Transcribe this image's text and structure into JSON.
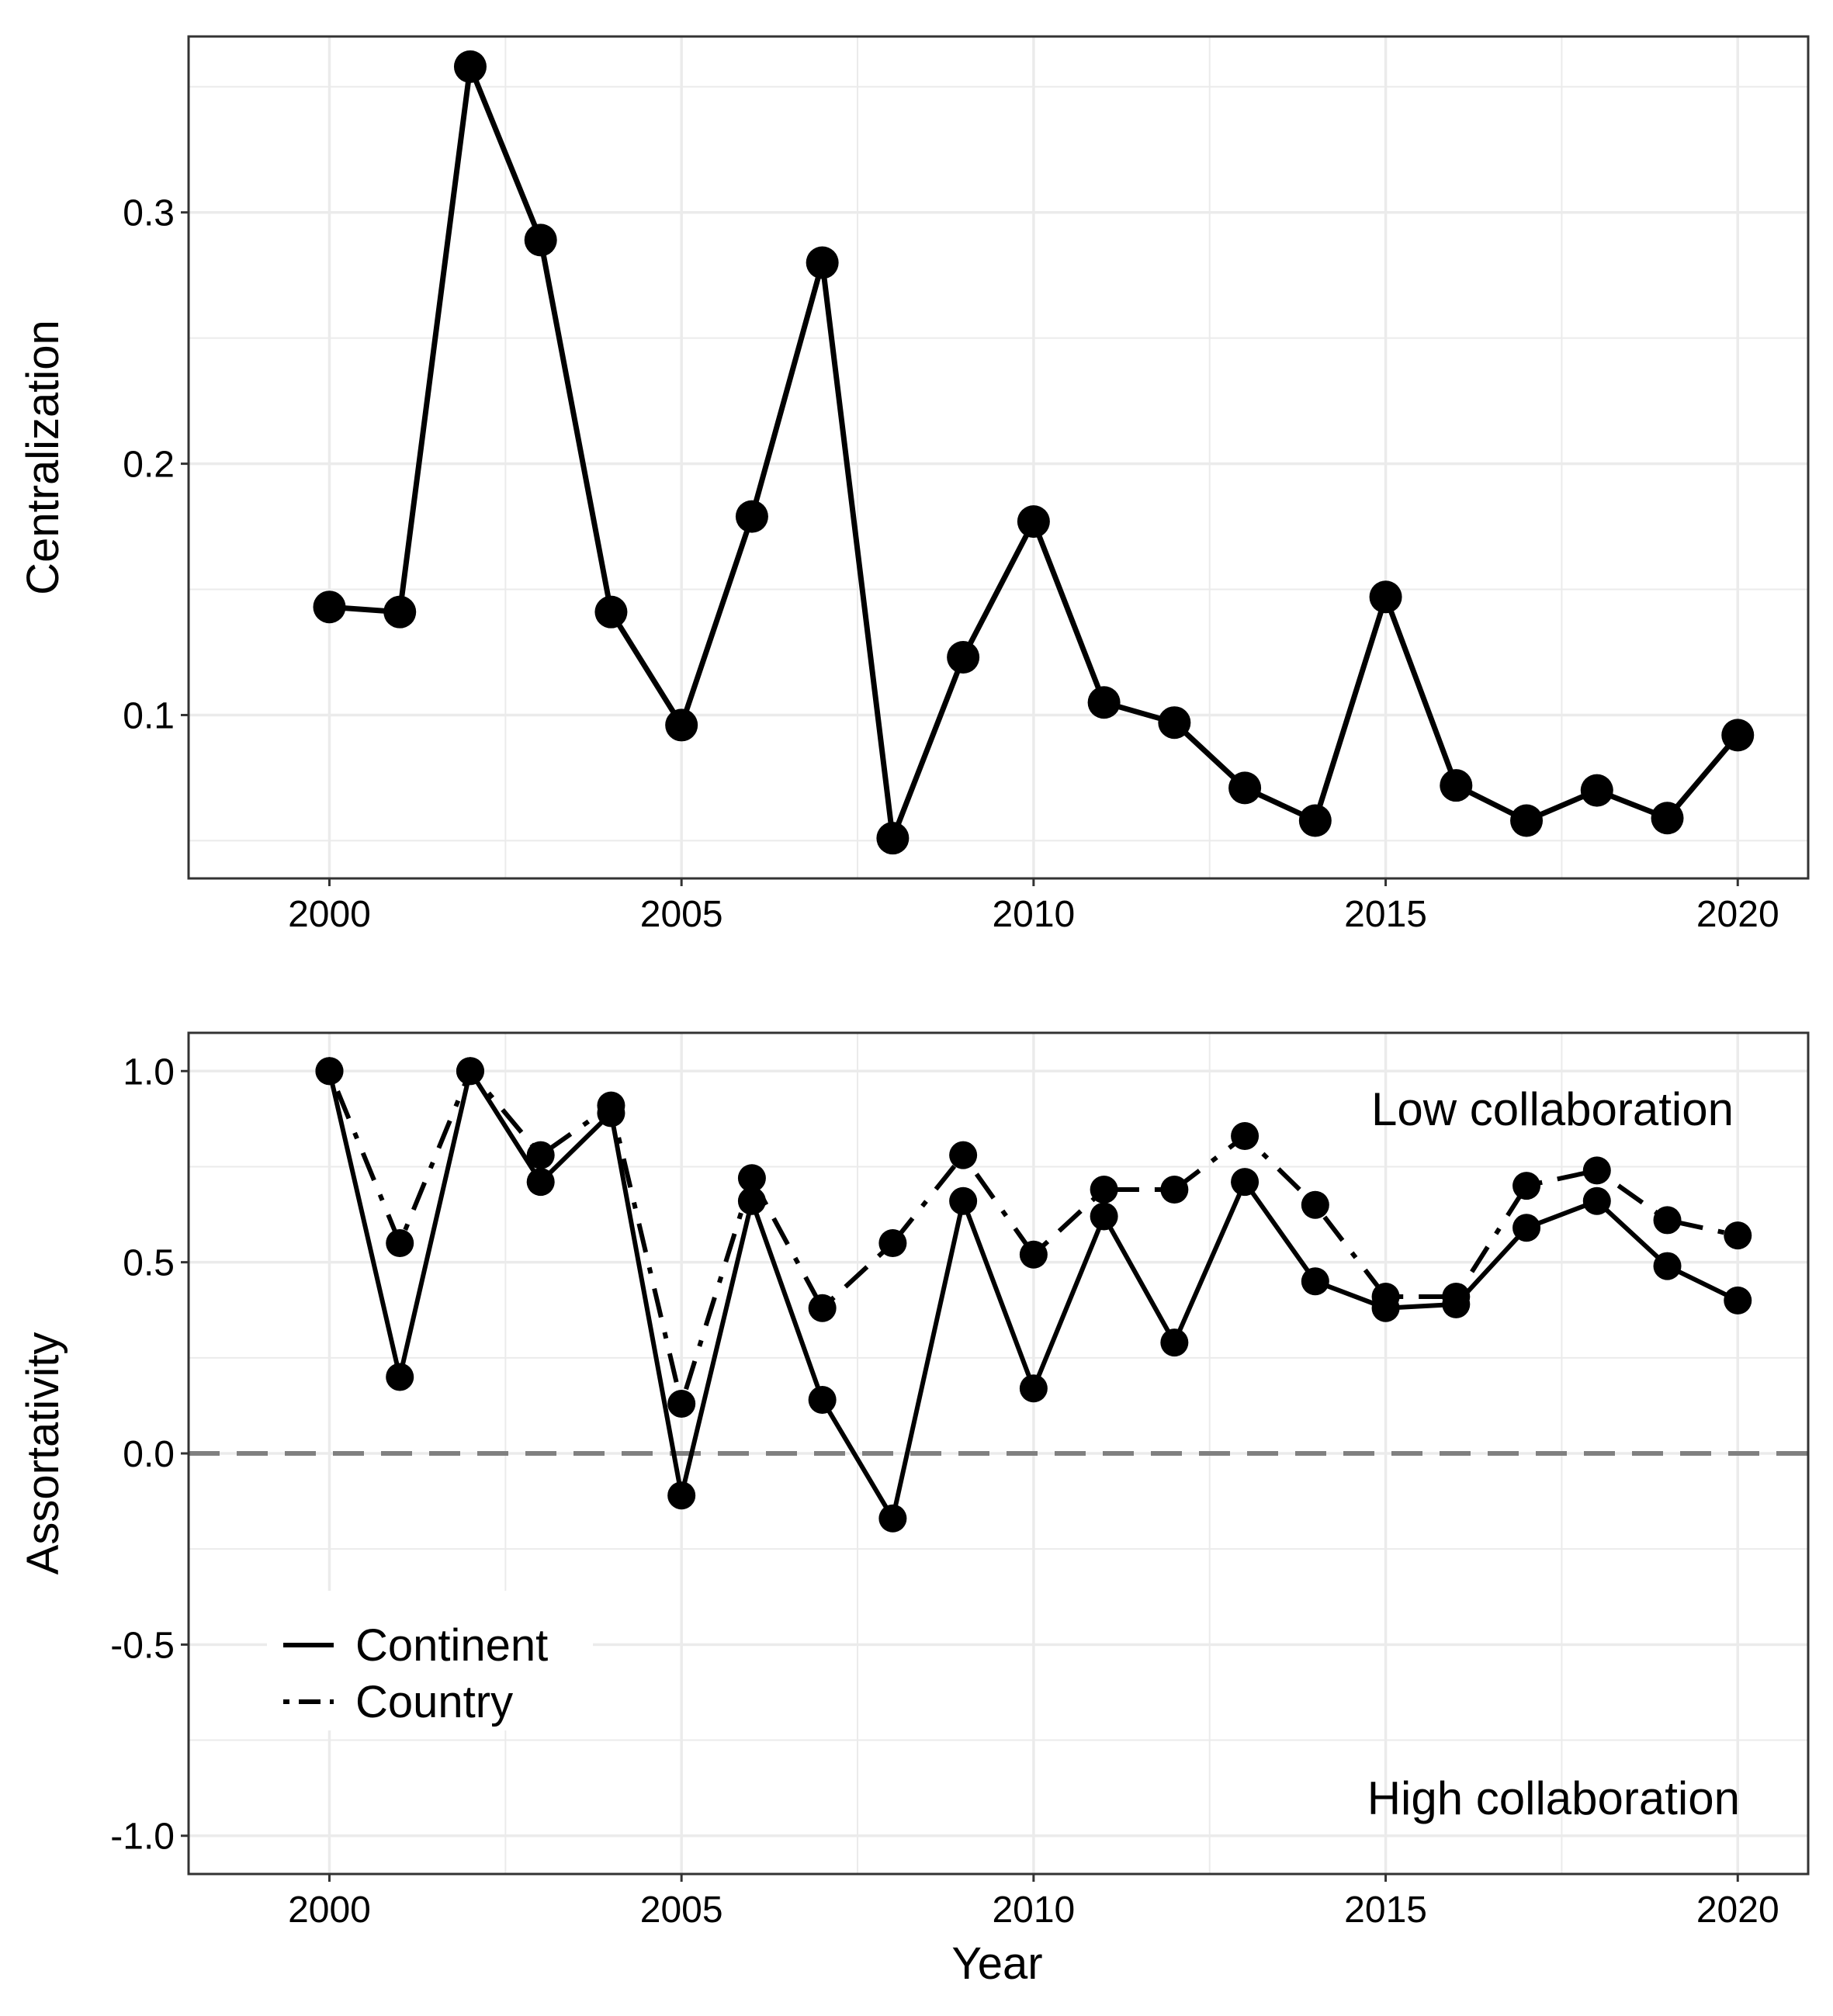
{
  "figure": {
    "xlabel": "Year",
    "colors": {
      "line": "#000000",
      "grid": "#ebebeb",
      "zero_line": "#808080"
    }
  },
  "chart_data": [
    {
      "type": "line",
      "title": "",
      "xlabel": "",
      "ylabel": "Centralization",
      "xlim": [
        1998,
        2021
      ],
      "ylim": [
        0.035,
        0.37
      ],
      "xticks": [
        2000,
        2005,
        2010,
        2015,
        2020
      ],
      "yticks": [
        0.1,
        0.2,
        0.3
      ],
      "ytick_labels": [
        "0.1",
        "0.2",
        "0.3"
      ],
      "grid": true,
      "legend": null,
      "x": [
        2000,
        2001,
        2002,
        2003,
        2004,
        2005,
        2006,
        2007,
        2008,
        2009,
        2010,
        2011,
        2012,
        2013,
        2014,
        2015,
        2016,
        2017,
        2018,
        2019,
        2020
      ],
      "series": [
        {
          "style": "solid",
          "values": [
            0.143,
            0.141,
            0.358,
            0.289,
            0.141,
            0.096,
            0.179,
            0.28,
            0.051,
            0.123,
            0.177,
            0.105,
            0.097,
            0.071,
            0.058,
            0.147,
            0.072,
            0.058,
            0.07,
            0.059,
            0.092
          ]
        }
      ]
    },
    {
      "type": "line",
      "title": "",
      "xlabel": "Year",
      "ylabel": "Assortativity",
      "xlim": [
        1998,
        2021
      ],
      "ylim": [
        -1.1,
        1.1
      ],
      "xticks": [
        2000,
        2005,
        2010,
        2015,
        2020
      ],
      "yticks": [
        -1.0,
        -0.5,
        0.0,
        0.5,
        1.0
      ],
      "ytick_labels": [
        "-1.0",
        "-0.5",
        "0.0",
        "0.5",
        "1.0"
      ],
      "grid": true,
      "reference_line": {
        "y": 0,
        "style": "dashed",
        "color": "#808080"
      },
      "annotations": [
        "Low collaboration",
        "High collaboration"
      ],
      "legend": {
        "placement": "bottom-left",
        "entries": [
          "Continent",
          "Country"
        ]
      },
      "x": [
        2000,
        2001,
        2002,
        2003,
        2004,
        2005,
        2006,
        2007,
        2008,
        2009,
        2010,
        2011,
        2012,
        2013,
        2014,
        2015,
        2016,
        2017,
        2018,
        2019,
        2020
      ],
      "series": [
        {
          "name": "Continent",
          "style": "solid",
          "values": [
            1.0,
            0.2,
            1.0,
            0.71,
            0.89,
            -0.11,
            0.66,
            0.14,
            -0.17,
            0.66,
            0.17,
            0.62,
            0.29,
            0.71,
            0.45,
            0.38,
            0.39,
            0.59,
            0.66,
            0.49,
            0.4
          ]
        },
        {
          "name": "Country",
          "style": "dotdash",
          "values": [
            1.0,
            0.55,
            1.0,
            0.78,
            0.91,
            0.13,
            0.72,
            0.38,
            0.55,
            0.78,
            0.52,
            0.69,
            0.69,
            0.83,
            0.65,
            0.41,
            0.41,
            0.7,
            0.74,
            0.61,
            0.57
          ]
        }
      ]
    }
  ]
}
